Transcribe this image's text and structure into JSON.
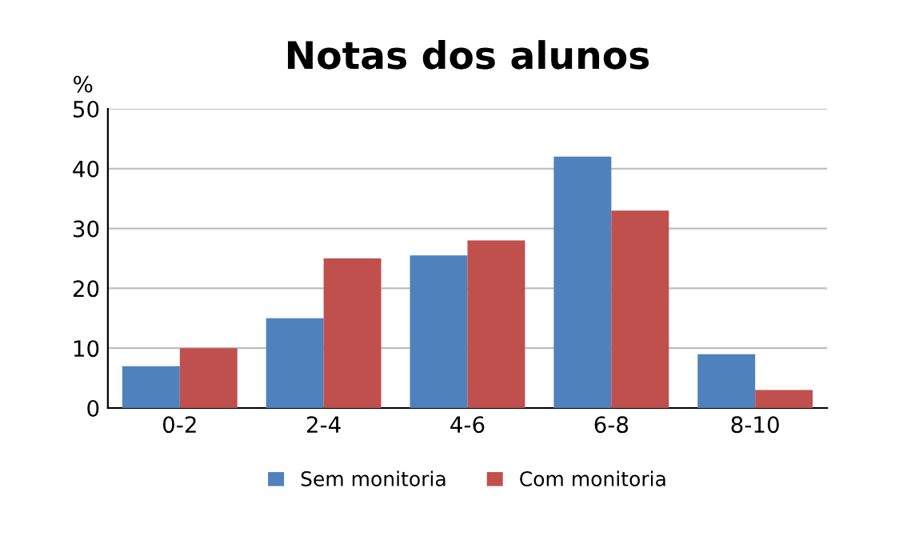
{
  "chart_data": {
    "type": "bar",
    "title": "Notas dos alunos",
    "ylabel": "%",
    "categories": [
      "0-2",
      "2-4",
      "4-6",
      "6-8",
      "8-10"
    ],
    "series": [
      {
        "name": "Sem monitoria",
        "color": "#4f81bd",
        "values": [
          7,
          15,
          25.5,
          42,
          9
        ]
      },
      {
        "name": "Com monitoria",
        "color": "#c0504d",
        "values": [
          10,
          25,
          28,
          33,
          3
        ]
      }
    ],
    "ylim": [
      0,
      50
    ],
    "yticks": [
      0,
      10,
      20,
      30,
      40,
      50
    ],
    "grid": "y",
    "legend": "bottom"
  }
}
